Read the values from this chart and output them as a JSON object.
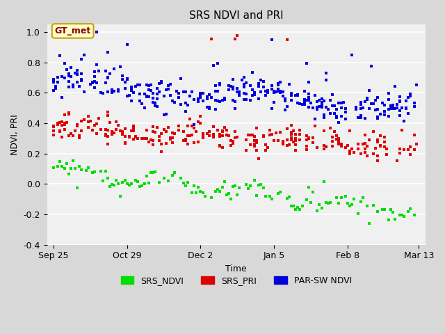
{
  "title": "SRS NDVI and PRI",
  "xlabel": "Time",
  "ylabel": "NDVI, PRI",
  "ylim": [
    -0.4,
    1.05
  ],
  "yticks": [
    -0.4,
    -0.2,
    0.0,
    0.2,
    0.4,
    0.6,
    0.8,
    1.0
  ],
  "annotation_text": "GT_met",
  "annotation_color": "#8B0000",
  "annotation_bg": "#ffffcc",
  "legend_labels": [
    "SRS_NDVI",
    "SRS_PRI",
    "PAR-SW NDVI"
  ],
  "legend_colors": [
    "#00dd00",
    "#dd0000",
    "#0000dd"
  ],
  "marker_size": 3,
  "seed": 42,
  "n_total": 169,
  "xtick_labels": [
    "Sep 25",
    "Oct 29",
    "Dec 2",
    "Jan 5",
    "Feb 8",
    "Mar 13"
  ],
  "xtick_days": [
    0,
    34,
    68,
    102,
    136,
    169
  ]
}
